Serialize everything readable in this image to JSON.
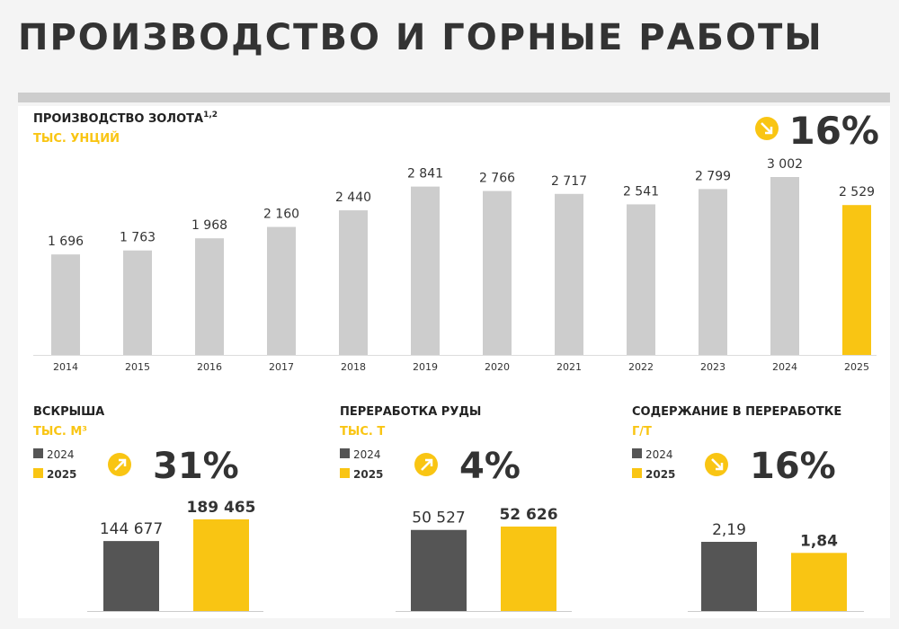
{
  "page_title": "ПРОИЗВОДСТВО И ГОРНЫЕ РАБОТЫ",
  "colors": {
    "accent": "#f9c513",
    "dark": "#555555",
    "gray_bar": "#cdcdcd",
    "text": "#333333"
  },
  "chart_data": [
    {
      "type": "bar",
      "title": "ПРОИЗВОДСТВО ЗОЛОТА",
      "title_superscript": "1,2",
      "unit": "ТЫС. УНЦИЙ",
      "change": "16%",
      "change_icon": "arrow-down-right-icon",
      "categories": [
        "2014",
        "2015",
        "2016",
        "2017",
        "2018",
        "2019",
        "2020",
        "2021",
        "2022",
        "2023",
        "2024",
        "2025"
      ],
      "values": [
        1696,
        1763,
        1968,
        2160,
        2440,
        2841,
        2766,
        2717,
        2541,
        2799,
        3002,
        2529
      ],
      "labels": [
        "1 696",
        "1 763",
        "1 968",
        "2 160",
        "2 440",
        "2 841",
        "2 766",
        "2 717",
        "2 541",
        "2 799",
        "3 002",
        "2 529"
      ],
      "highlight": "2025",
      "ylim": [
        0,
        3002
      ]
    },
    {
      "type": "bar",
      "title": "ВСКРЫША",
      "unit": "ТЫС. М³",
      "change": "31%",
      "change_icon": "arrow-up-right-icon",
      "legend": [
        "2024",
        "2025"
      ],
      "categories": [
        "2024",
        "2025"
      ],
      "values": [
        144677,
        189465
      ],
      "labels": [
        "144 677",
        "189 465"
      ]
    },
    {
      "type": "bar",
      "title": "ПЕРЕРАБОТКА РУДЫ",
      "unit": "ТЫС. Т",
      "change": "4%",
      "change_icon": "arrow-up-right-icon",
      "legend": [
        "2024",
        "2025"
      ],
      "categories": [
        "2024",
        "2025"
      ],
      "values": [
        50527,
        52626
      ],
      "labels": [
        "50 527",
        "52 626"
      ]
    },
    {
      "type": "bar",
      "title": "СОДЕРЖАНИЕ В ПЕРЕРАБОТКЕ",
      "unit": "Г/Т",
      "change": "16%",
      "change_icon": "arrow-down-right-icon",
      "legend": [
        "2024",
        "2025"
      ],
      "categories": [
        "2024",
        "2025"
      ],
      "values": [
        2.19,
        1.84
      ],
      "labels": [
        "2,19",
        "1,84"
      ]
    }
  ]
}
